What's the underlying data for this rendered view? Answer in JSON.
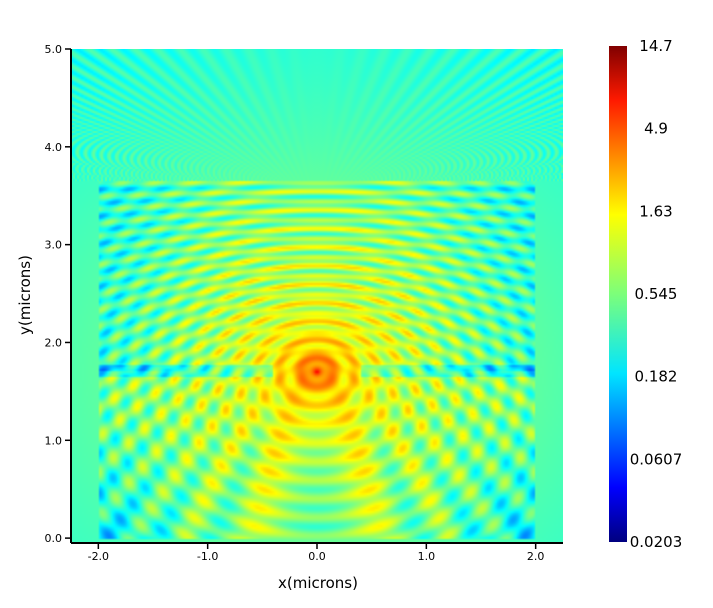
{
  "chart_data": {
    "type": "heatmap",
    "title": "",
    "xlabel": "x(microns)",
    "ylabel": "y(microns)",
    "xlim": [
      -2.25,
      2.25
    ],
    "ylim": [
      -0.05,
      5.0
    ],
    "x_ticks": [
      {
        "value": -2.0,
        "label": "-2.0"
      },
      {
        "value": -1.0,
        "label": "-1.0"
      },
      {
        "value": 0.0,
        "label": "0.0"
      },
      {
        "value": 1.0,
        "label": "1.0"
      },
      {
        "value": 2.0,
        "label": "2.0"
      }
    ],
    "y_ticks": [
      {
        "value": 0.0,
        "label": "0.0"
      },
      {
        "value": 1.0,
        "label": "1.0"
      },
      {
        "value": 2.0,
        "label": "2.0"
      },
      {
        "value": 3.0,
        "label": "3.0"
      },
      {
        "value": 4.0,
        "label": "4.0"
      },
      {
        "value": 5.0,
        "label": "5.0"
      }
    ],
    "colorbar": {
      "scale": "log",
      "colormap": "jet",
      "min": 0.0203,
      "max": 14.7,
      "ticks": [
        "14.7",
        "4.9",
        "1.63",
        "0.545",
        "0.182",
        "0.0607",
        "0.0203"
      ]
    },
    "features": {
      "source_point": [
        0.0,
        1.7
      ],
      "rect_region": {
        "x": [
          -2.0,
          2.0
        ],
        "y": [
          0.0,
          3.65
        ]
      }
    },
    "grid": false
  }
}
